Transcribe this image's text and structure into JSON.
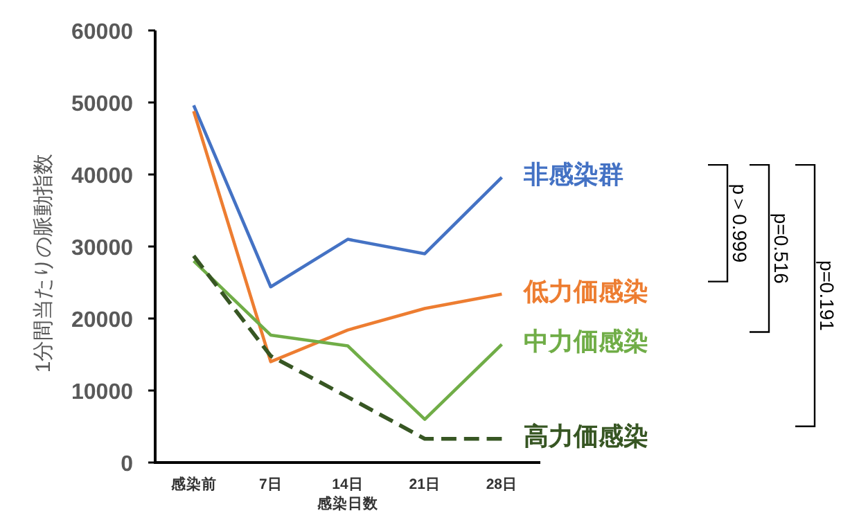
{
  "chart_data": {
    "type": "line",
    "xlabel": "感染日数",
    "ylabel": "1分間当たりの脈動指数",
    "categories": [
      "感染前",
      "7日",
      "14日",
      "21日",
      "28日"
    ],
    "ylim": [
      0,
      60000
    ],
    "yticks": [
      0,
      10000,
      20000,
      30000,
      40000,
      50000,
      60000
    ],
    "grid": false,
    "marker": "none",
    "series": [
      {
        "name": "非感染群",
        "color": "#4472c4",
        "values": [
          49600,
          24400,
          31000,
          29000,
          39600
        ],
        "line_style": "solid"
      },
      {
        "name": "低力価感染",
        "color": "#ed7d31",
        "values": [
          48800,
          14000,
          18400,
          21400,
          23400
        ],
        "line_style": "solid"
      },
      {
        "name": "中力価感染",
        "color": "#70ad47",
        "values": [
          28000,
          17700,
          16200,
          6000,
          16400
        ],
        "line_style": "solid"
      },
      {
        "name": "高力価感染",
        "color": "#375623",
        "values": [
          28700,
          14800,
          9100,
          3300,
          3300
        ],
        "line_style": "dashed"
      }
    ],
    "annotations": [
      "p＞0.999",
      "p=0.516",
      "p=0.191"
    ]
  }
}
